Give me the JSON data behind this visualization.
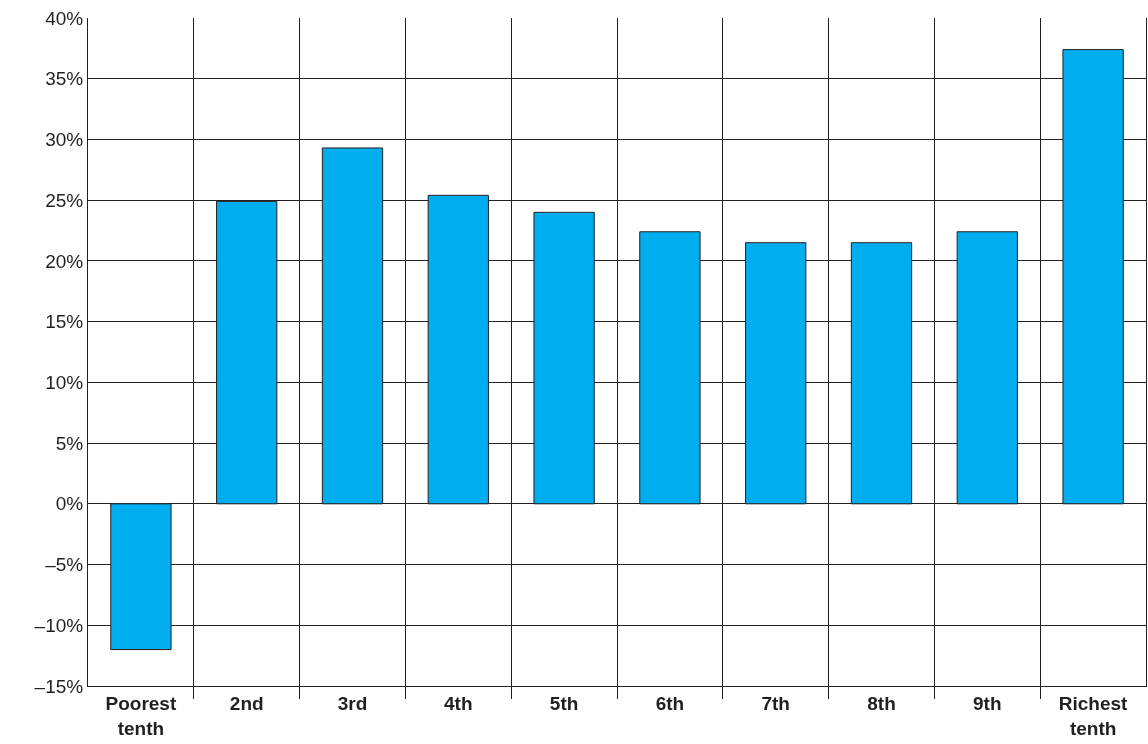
{
  "chart_data": {
    "type": "bar",
    "categories": [
      "Poorest tenth",
      "2nd",
      "3rd",
      "4th",
      "5th",
      "6th",
      "7th",
      "8th",
      "9th",
      "Richest tenth"
    ],
    "values": [
      -12.0,
      24.9,
      29.3,
      25.4,
      24.0,
      22.4,
      21.5,
      21.5,
      22.4,
      37.4
    ],
    "color": "#00aeef",
    "ylim": [
      -15,
      40
    ],
    "yticks": [
      {
        "value": -15,
        "label": "–15%"
      },
      {
        "value": -10,
        "label": "–10%"
      },
      {
        "value": -5,
        "label": "–5%"
      },
      {
        "value": 0,
        "label": "0%"
      },
      {
        "value": 5,
        "label": "5%"
      },
      {
        "value": 10,
        "label": "10%"
      },
      {
        "value": 15,
        "label": "15%"
      },
      {
        "value": 20,
        "label": "20%"
      },
      {
        "value": 25,
        "label": "25%"
      },
      {
        "value": 30,
        "label": "30%"
      },
      {
        "value": 35,
        "label": "35%"
      },
      {
        "value": 40,
        "label": "40%"
      }
    ],
    "grid": true,
    "legend": false
  }
}
